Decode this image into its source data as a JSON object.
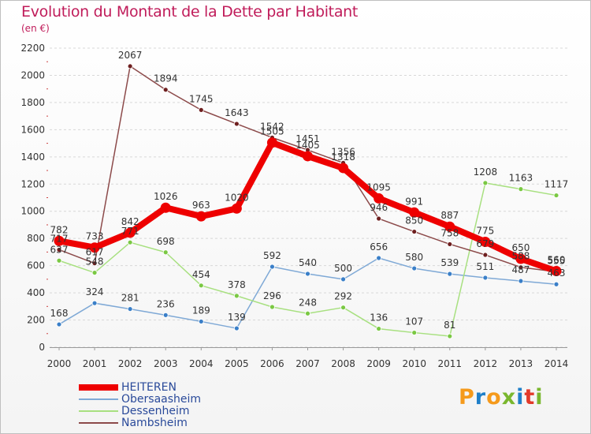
{
  "header": {
    "title": "Evolution du Montant de la Dette par Habitant",
    "subtitle": "(en €)"
  },
  "logo": {
    "text": "Proxiti",
    "colors": [
      "#f59a1c",
      "#1f7fc9",
      "#f59a1c",
      "#7ab72e",
      "#1f7fc9",
      "#e23a2a",
      "#7ab72e"
    ]
  },
  "colors": {
    "title": "#c01c5a",
    "axis_text": "#333333",
    "legend_text": "#2a4a9a"
  },
  "chart_data": {
    "type": "line",
    "title": "Evolution du Montant de la Dette par Habitant",
    "subtitle": "(en €)",
    "xlabel": "",
    "ylabel": "",
    "x": [
      "2000",
      "2001",
      "2002",
      "2003",
      "2004",
      "2005",
      "2006",
      "2007",
      "2008",
      "2009",
      "2010",
      "2011",
      "2012",
      "2013",
      "2014"
    ],
    "ylim": [
      0,
      2200
    ],
    "yticks": [
      0,
      200,
      400,
      600,
      800,
      1000,
      1200,
      1400,
      1600,
      1800,
      2000,
      2200
    ],
    "grid": "horizontal dashed",
    "legend_position": "bottom-left",
    "series": [
      {
        "name": "HEITEREN",
        "color": "#ee0000",
        "marker": "#ee0000",
        "width": 8,
        "values": [
          782,
          733,
          842,
          1026,
          963,
          1020,
          1505,
          1405,
          1318,
          1095,
          991,
          887,
          775,
          650,
          560
        ]
      },
      {
        "name": "Obersaasheim",
        "color": "#7fa9d6",
        "marker": "#3a7fc8",
        "width": 1.5,
        "values": [
          168,
          324,
          281,
          236,
          189,
          139,
          592,
          540,
          500,
          656,
          580,
          539,
          511,
          487,
          463
        ]
      },
      {
        "name": "Dessenheim",
        "color": "#a8e080",
        "marker": "#7ac843",
        "width": 1.5,
        "values": [
          637,
          548,
          771,
          698,
          454,
          378,
          296,
          248,
          292,
          136,
          107,
          81,
          1208,
          1163,
          1117
        ]
      },
      {
        "name": "Nambsheim",
        "color": "#8c4a4a",
        "marker": "#6e1f1f",
        "width": 1.5,
        "values": [
          717,
          617,
          2067,
          1894,
          1745,
          1643,
          1542,
          1451,
          1356,
          946,
          850,
          758,
          679,
          588,
          555
        ]
      }
    ]
  }
}
